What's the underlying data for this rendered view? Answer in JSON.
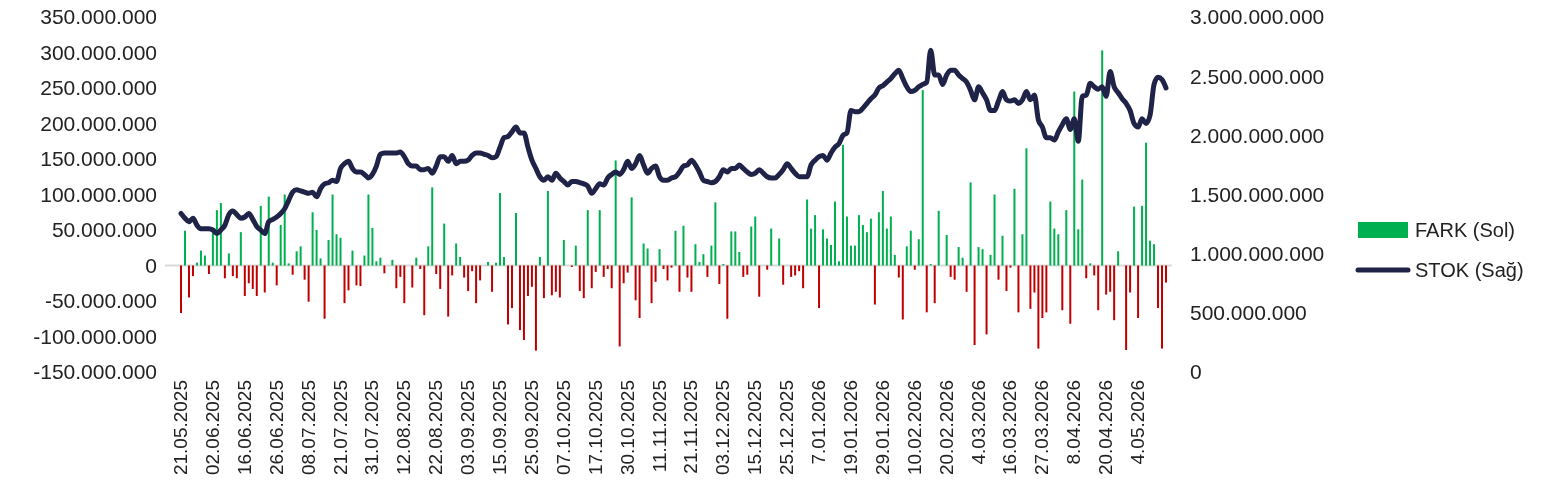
{
  "chart_data": {
    "type": "bar",
    "categories": [
      "21.05.2025",
      null,
      null,
      null,
      null,
      null,
      null,
      null,
      "02.06.2025",
      null,
      null,
      null,
      null,
      null,
      null,
      null,
      "16.06.2025",
      null,
      null,
      null,
      null,
      null,
      null,
      null,
      "26.06.2025",
      null,
      null,
      null,
      null,
      null,
      null,
      null,
      "08.07.2025",
      null,
      null,
      null,
      null,
      null,
      null,
      null,
      "21.07.2025",
      null,
      null,
      null,
      null,
      null,
      null,
      null,
      "31.07.2025",
      null,
      null,
      null,
      null,
      null,
      null,
      null,
      "12.08.2025",
      null,
      null,
      null,
      null,
      null,
      null,
      null,
      "22.08.2025",
      null,
      null,
      null,
      null,
      null,
      null,
      null,
      "03.09.2025",
      null,
      null,
      null,
      null,
      null,
      null,
      null,
      "15.09.2025",
      null,
      null,
      null,
      null,
      null,
      null,
      null,
      "25.09.2025",
      null,
      null,
      null,
      null,
      null,
      null,
      null,
      "07.10.2025",
      null,
      null,
      null,
      null,
      null,
      null,
      null,
      "17.10.2025",
      null,
      null,
      null,
      null,
      null,
      null,
      null,
      "30.10.2025",
      null,
      null,
      null,
      null,
      null,
      null,
      null,
      "11.11.2025",
      null,
      null,
      null,
      null,
      null,
      null,
      null,
      "21.11.2025",
      null,
      null,
      null,
      null,
      null,
      null,
      null,
      "03.12.2025",
      null,
      null,
      null,
      null,
      null,
      null,
      null,
      "15.12.2025",
      null,
      null,
      null,
      null,
      null,
      null,
      null,
      "25.12.2025",
      null,
      null,
      null,
      null,
      null,
      null,
      null,
      "7.01.2026",
      null,
      null,
      null,
      null,
      null,
      null,
      null,
      "19.01.2026",
      null,
      null,
      null,
      null,
      null,
      null,
      null,
      "29.01.2026",
      null,
      null,
      null,
      null,
      null,
      null,
      null,
      "10.02.2026",
      null,
      null,
      null,
      null,
      null,
      null,
      null,
      "20.02.2026",
      null,
      null,
      null,
      null,
      null,
      null,
      null,
      "4.03.2026",
      null,
      null,
      null,
      null,
      null,
      null,
      null,
      "16.03.2026",
      null,
      null,
      null,
      null,
      null,
      null,
      null,
      "27.03.2026",
      null,
      null,
      null,
      null,
      null,
      null,
      null,
      "8.04.2026",
      null,
      null,
      null,
      null,
      null,
      null,
      null,
      "20.04.2026",
      null,
      null,
      null,
      null,
      null,
      null,
      null,
      "4.05.2026",
      null,
      null,
      null,
      null,
      null,
      null,
      null
    ],
    "series": [
      {
        "name": "FARK (Sol)",
        "color": "#00b050",
        "colors": [
          "#c00000",
          "#00b050",
          "#c00000",
          "#c00000",
          "#00b050",
          "#00b050",
          "#00b050",
          "#c00000",
          "#00b050",
          "#00b050",
          "#00b050",
          "#c00000",
          "#00b050",
          "#c00000",
          "#c00000",
          "#00b050",
          "#c00000",
          "#c00000",
          "#c00000",
          "#c00000",
          "#00b050",
          "#c00000",
          "#00b050",
          "#00b050",
          "#c00000",
          "#00b050",
          "#00b050",
          "#00b050",
          "#c00000",
          "#00b050",
          "#00b050",
          "#c00000",
          "#c00000",
          "#00b050",
          "#00b050",
          "#00b050",
          "#c00000",
          "#00b050",
          "#00b050",
          "#00b050",
          "#00b050",
          "#c00000",
          "#c00000",
          "#00b050",
          "#c00000",
          "#c00000",
          "#00b050",
          "#00b050",
          "#00b050",
          "#00b050",
          "#00b050",
          "#c00000",
          "#00b050",
          "#00b050",
          "#c00000",
          "#c00000",
          "#c00000",
          null,
          "#c00000",
          "#00b050",
          "#c00000",
          "#c00000",
          "#00b050",
          "#00b050",
          "#c00000",
          "#c00000",
          "#00b050",
          "#c00000",
          "#c00000",
          "#00b050",
          "#00b050",
          "#c00000",
          "#c00000",
          "#c00000",
          "#c00000",
          "#c00000",
          "#00b050",
          "#00b050",
          "#c00000",
          "#00b050",
          "#00b050",
          "#00b050",
          "#c00000",
          "#c00000",
          "#00b050",
          "#c00000",
          "#c00000",
          "#c00000",
          "#c00000",
          "#c00000",
          "#00b050",
          "#c00000",
          "#00b050",
          "#c00000",
          "#c00000",
          "#c00000",
          "#00b050",
          "#00b050",
          "#c00000",
          "#00b050",
          "#c00000",
          "#c00000",
          "#00b050",
          "#c00000",
          "#c00000",
          "#00b050",
          "#c00000",
          "#c00000",
          "#c00000",
          "#00b050",
          "#c00000",
          "#c00000",
          "#c00000",
          "#00b050",
          "#c00000",
          "#c00000",
          "#00b050",
          "#00b050",
          "#c00000",
          "#c00000",
          "#00b050",
          "#c00000",
          "#c00000",
          "#c00000",
          "#00b050",
          "#c00000",
          "#00b050",
          "#c00000",
          "#c00000",
          "#00b050",
          "#00b050",
          "#00b050",
          "#c00000",
          "#00b050",
          "#00b050",
          "#c00000",
          "#00b050",
          "#c00000",
          "#00b050",
          "#00b050",
          "#00b050",
          "#c00000",
          "#c00000",
          "#00b050",
          "#00b050",
          "#c00000",
          "#00b050",
          "#c00000",
          "#00b050",
          "#00b050",
          "#00b050",
          "#c00000",
          "#00b050",
          "#c00000",
          "#c00000",
          "#c00000",
          "#c00000",
          "#00b050",
          "#00b050",
          "#00b050",
          "#c00000",
          "#00b050",
          "#00b050",
          "#00b050",
          "#00b050",
          "#00b050",
          "#00b050",
          "#00b050",
          "#00b050",
          "#00b050",
          "#00b050",
          "#00b050",
          "#00b050",
          "#00b050",
          "#c00000",
          "#00b050",
          "#00b050",
          "#00b050",
          "#00b050",
          "#00b050",
          "#c00000",
          "#c00000",
          "#00b050",
          "#00b050",
          "#c00000",
          "#00b050",
          "#00b050",
          "#c00000",
          "#00b050",
          "#c00000",
          "#00b050",
          null,
          "#00b050",
          "#c00000",
          "#c00000",
          "#00b050",
          "#00b050",
          "#c00000",
          "#00b050",
          "#c00000",
          "#00b050",
          "#00b050",
          "#c00000",
          "#00b050",
          "#00b050",
          "#c00000",
          "#00b050",
          "#c00000",
          "#c00000",
          "#00b050",
          "#c00000",
          "#00b050",
          "#00b050",
          "#c00000",
          "#c00000",
          "#c00000",
          "#c00000",
          "#c00000",
          "#00b050",
          "#00b050",
          "#00b050",
          "#c00000",
          "#00b050",
          "#c00000",
          "#00b050",
          "#00b050",
          "#00b050",
          "#c00000",
          "#00b050",
          "#c00000",
          "#c00000",
          "#00b050",
          "#c00000",
          "#c00000",
          "#c00000",
          "#00b050",
          "#00b050",
          "#c00000",
          "#c00000",
          "#00b050",
          "#c00000",
          "#00b050",
          "#00b050",
          "#00b050",
          "#00b050",
          "#c00000",
          "#c00000",
          "#c00000"
        ],
        "values": [
          -67000000.0,
          49000000.0,
          -45000000.0,
          -15000000.0,
          4000000.0,
          21000000.0,
          14000000.0,
          -12000000.0,
          46000000.0,
          78000000.0,
          88000000.0,
          -18000000.0,
          17000000.0,
          -15000000.0,
          -18000000.0,
          47000000.0,
          -43000000.0,
          -25000000.0,
          -33000000.0,
          -43000000.0,
          84000000.0,
          -38000000.0,
          97000000.0,
          4000000.0,
          -28000000.0,
          57000000.0,
          100000000.0,
          3000000.0,
          -13000000.0,
          20000000.0,
          27000000.0,
          -20000000.0,
          -51000000.0,
          75000000.0,
          50000000.0,
          10000000.0,
          -75000000.0,
          36000000.0,
          100000000.0,
          44000000.0,
          39000000.0,
          -53000000.0,
          -35000000.0,
          21000000.0,
          -28000000.0,
          -29000000.0,
          14000000.0,
          100000000.0,
          53000000.0,
          6000000.0,
          11000000.0,
          -11000000.0,
          0,
          8000000.0,
          -32000000.0,
          -16000000.0,
          -53000000.0,
          null,
          -31000000.0,
          11000000.0,
          -5000000.0,
          -70000000.0,
          27000000.0,
          110000000.0,
          -12000000.0,
          -33000000.0,
          59000000.0,
          -72000000.0,
          -14000000.0,
          31000000.0,
          12000000.0,
          -17000000.0,
          -36000000.0,
          -8000000.0,
          -53000000.0,
          -21000000.0,
          0,
          5000000.0,
          -37000000.0,
          4000000.0,
          102000000.0,
          12000000.0,
          -83000000.0,
          -60000000.0,
          74000000.0,
          -91000000.0,
          -105000000.0,
          -43000000.0,
          -30000000.0,
          -120000000.0,
          12000000.0,
          -46000000.0,
          105000000.0,
          -42000000.0,
          -37000000.0,
          -45000000.0,
          36000000.0,
          0,
          -2000000.0,
          28000000.0,
          -36000000.0,
          -46000000.0,
          78000000.0,
          -32000000.0,
          -9000000.0,
          78000000.0,
          -16000000.0,
          -5000000.0,
          -32000000.0,
          148000000.0,
          -114000000.0,
          -25000000.0,
          -10000000.0,
          96000000.0,
          -49000000.0,
          -74000000.0,
          31000000.0,
          24000000.0,
          -53000000.0,
          -23000000.0,
          23000000.0,
          -5000000.0,
          -21000000.0,
          -3000000.0,
          49000000.0,
          -37000000.0,
          56000000.0,
          -17000000.0,
          -37000000.0,
          30000000.0,
          5000000.0,
          16000000.0,
          -16000000.0,
          28000000.0,
          89000000.0,
          -26000000.0,
          2000000.0,
          -75000000.0,
          48000000.0,
          48000000.0,
          19000000.0,
          -16000000.0,
          -13000000.0,
          55000000.0,
          69000000.0,
          -44000000.0,
          0,
          -6000000.0,
          52000000.0,
          0,
          38000000.0,
          -27000000.0,
          0,
          -16000000.0,
          -14000000.0,
          -8000000.0,
          -32000000.0,
          93000000.0,
          52000000.0,
          71000000.0,
          -60000000.0,
          51000000.0,
          38000000.0,
          29000000.0,
          90000000.0,
          6000000.0,
          170000000.0,
          69000000.0,
          28000000.0,
          28000000.0,
          71000000.0,
          57000000.0,
          47000000.0,
          66000000.0,
          -55000000.0,
          75000000.0,
          105000000.0,
          52000000.0,
          69000000.0,
          15000000.0,
          -17000000.0,
          -76000000.0,
          27000000.0,
          49000000.0,
          -6000000.0,
          37000000.0,
          247000000.0,
          -66000000.0,
          2000000.0,
          -53000000.0,
          77000000.0,
          null,
          43000000.0,
          -16000000.0,
          -20000000.0,
          26000000.0,
          11000000.0,
          -37000000.0,
          117000000.0,
          -112000000.0,
          26000000.0,
          23000000.0,
          -97000000.0,
          15000000.0,
          100000000.0,
          -20000000.0,
          42000000.0,
          -36000000.0,
          -3000000.0,
          108000000.0,
          -66000000.0,
          44000000.0,
          165000000.0,
          -61000000.0,
          -38000000.0,
          -117000000.0,
          -74000000.0,
          -66000000.0,
          90000000.0,
          52000000.0,
          44000000.0,
          -63000000.0,
          78000000.0,
          -82000000.0,
          245000000.0,
          51000000.0,
          121000000.0,
          -18000000.0,
          3000000.0,
          -14000000.0,
          -63000000.0,
          303000000.0,
          -41000000.0,
          -37000000.0,
          -77000000.0,
          20000000.0,
          0,
          -119000000.0,
          -38000000.0,
          83000000.0,
          -74000000.0,
          84000000.0,
          173000000.0,
          35000000.0,
          30000000.0,
          -60000000.0,
          -117000000.0,
          -24000000.0
        ]
      },
      {
        "name": "STOK (Sağ)",
        "type": "line",
        "axis": "y2",
        "color": "#1f2348",
        "values": [
          1340000000.0,
          1300000000.0,
          1270000000.0,
          1300000000.0,
          1240000000.0,
          1210000000.0,
          1210000000.0,
          1210000000.0,
          1200000000.0,
          1170000000.0,
          1200000000.0,
          1240000000.0,
          1330000000.0,
          1360000000.0,
          1330000000.0,
          1300000000.0,
          1310000000.0,
          1340000000.0,
          1290000000.0,
          1230000000.0,
          1200000000.0,
          1170000000.0,
          1270000000.0,
          1290000000.0,
          1310000000.0,
          1340000000.0,
          1380000000.0,
          1450000000.0,
          1520000000.0,
          1540000000.0,
          1530000000.0,
          1520000000.0,
          1510000000.0,
          1520000000.0,
          1480000000.0,
          1550000000.0,
          1590000000.0,
          1600000000.0,
          1620000000.0,
          1610000000.0,
          1720000000.0,
          1760000000.0,
          1780000000.0,
          1720000000.0,
          1690000000.0,
          1690000000.0,
          1670000000.0,
          1640000000.0,
          1670000000.0,
          1740000000.0,
          1840000000.0,
          1850000000.0,
          1850000000.0,
          1850000000.0,
          1850000000.0,
          1860000000.0,
          1820000000.0,
          1760000000.0,
          1740000000.0,
          1740000000.0,
          1710000000.0,
          1710000000.0,
          1720000000.0,
          1680000000.0,
          1740000000.0,
          1820000000.0,
          1820000000.0,
          1780000000.0,
          1830000000.0,
          1760000000.0,
          1780000000.0,
          1780000000.0,
          1790000000.0,
          1830000000.0,
          1850000000.0,
          1850000000.0,
          1840000000.0,
          1830000000.0,
          1810000000.0,
          1820000000.0,
          1900000000.0,
          1980000000.0,
          1990000000.0,
          2030000000.0,
          2070000000.0,
          2020000000.0,
          2020000000.0,
          1900000000.0,
          1790000000.0,
          1720000000.0,
          1650000000.0,
          1620000000.0,
          1650000000.0,
          1620000000.0,
          1680000000.0,
          1640000000.0,
          1610000000.0,
          1580000000.0,
          1610000000.0,
          1610000000.0,
          1600000000.0,
          1590000000.0,
          1570000000.0,
          1510000000.0,
          1550000000.0,
          1590000000.0,
          1580000000.0,
          1640000000.0,
          1670000000.0,
          1690000000.0,
          1670000000.0,
          1710000000.0,
          1780000000.0,
          1720000000.0,
          1760000000.0,
          1830000000.0,
          1750000000.0,
          1680000000.0,
          1720000000.0,
          1740000000.0,
          1650000000.0,
          1620000000.0,
          1620000000.0,
          1640000000.0,
          1650000000.0,
          1690000000.0,
          1740000000.0,
          1750000000.0,
          1790000000.0,
          1750000000.0,
          1690000000.0,
          1620000000.0,
          1610000000.0,
          1600000000.0,
          1610000000.0,
          1650000000.0,
          1710000000.0,
          1690000000.0,
          1720000000.0,
          1720000000.0,
          1750000000.0,
          1720000000.0,
          1690000000.0,
          1670000000.0,
          1680000000.0,
          1710000000.0,
          1680000000.0,
          1650000000.0,
          1640000000.0,
          1640000000.0,
          1670000000.0,
          1710000000.0,
          1760000000.0,
          1720000000.0,
          1680000000.0,
          1650000000.0,
          1650000000.0,
          1650000000.0,
          1750000000.0,
          1790000000.0,
          1820000000.0,
          1830000000.0,
          1790000000.0,
          1850000000.0,
          1900000000.0,
          1930000000.0,
          2000000000.0,
          2020000000.0,
          2210000000.0,
          2200000000.0,
          2200000000.0,
          2230000000.0,
          2270000000.0,
          2310000000.0,
          2340000000.0,
          2400000000.0,
          2420000000.0,
          2450000000.0,
          2480000000.0,
          2520000000.0,
          2550000000.0,
          2480000000.0,
          2410000000.0,
          2370000000.0,
          2380000000.0,
          2410000000.0,
          2430000000.0,
          2450000000.0,
          2720000000.0,
          2510000000.0,
          2510000000.0,
          2430000000.0,
          2510000000.0,
          2550000000.0,
          2550000000.0,
          2510000000.0,
          2480000000.0,
          2450000000.0,
          2380000000.0,
          2300000000.0,
          2410000000.0,
          2360000000.0,
          2300000000.0,
          2210000000.0,
          2210000000.0,
          2290000000.0,
          2370000000.0,
          2300000000.0,
          2290000000.0,
          2300000000.0,
          2270000000.0,
          2300000000.0,
          2370000000.0,
          2300000000.0,
          2340000000.0,
          2130000000.0,
          2070000000.0,
          1980000000.0,
          1980000000.0,
          1960000000.0,
          2030000000.0,
          2090000000.0,
          2140000000.0,
          2050000000.0,
          2140000000.0,
          1950000000.0,
          2330000000.0,
          2340000000.0,
          2440000000.0,
          2410000000.0,
          2390000000.0,
          2410000000.0,
          2330000000.0,
          2540000000.0,
          2410000000.0,
          2360000000.0,
          2310000000.0,
          2270000000.0,
          2210000000.0,
          2100000000.0,
          2070000000.0,
          2140000000.0,
          2100000000.0,
          2170000000.0,
          2430000000.0,
          2490000000.0,
          2470000000.0,
          2400000000.0
        ]
      }
    ],
    "ylim": [
      -150000000,
      350000000
    ],
    "yticks": [
      {
        "value": -150000000,
        "label": "-150.000.000"
      },
      {
        "value": -100000000,
        "label": "-100.000.000"
      },
      {
        "value": -50000000,
        "label": "-50.000.000"
      },
      0,
      {
        "value": 50000000,
        "label": "50.000.000"
      },
      {
        "value": 100000000,
        "label": "100.000.000"
      },
      {
        "value": 150000000,
        "label": "150.000.000"
      },
      {
        "value": 200000000,
        "label": "200.000.000"
      },
      {
        "value": 250000000,
        "label": "250.000.000"
      },
      {
        "value": 300000000,
        "label": "300.000.000"
      },
      {
        "value": 350000000,
        "label": "350.000.000"
      }
    ],
    "y2lim": [
      0,
      3000000000
    ],
    "y2ticks": [
      0,
      {
        "value": 500000000,
        "label": "500.000.000"
      },
      {
        "value": 1000000000,
        "label": "1.000.000.000"
      },
      {
        "value": 1500000000,
        "label": "1.500.000.000"
      },
      {
        "value": 2000000000,
        "label": "2.000.000.000"
      },
      {
        "value": 2500000000,
        "label": "2.500.000.000"
      },
      {
        "value": 3000000000,
        "label": "3.000.000.000"
      }
    ],
    "legend": "right"
  }
}
